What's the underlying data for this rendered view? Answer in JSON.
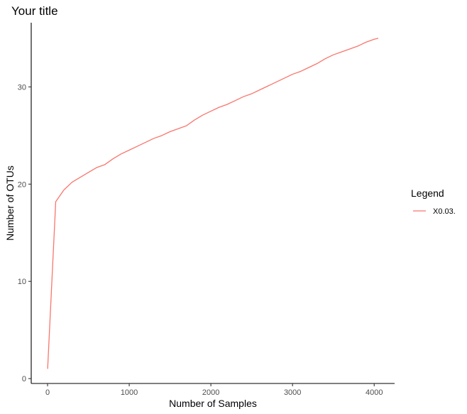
{
  "chart_data": {
    "type": "line",
    "title": "Your title",
    "xlabel": "Number of Samples",
    "ylabel": "Number of OTUs",
    "xlim": [
      -200,
      4250
    ],
    "ylim": [
      -0.5,
      36.6
    ],
    "x_ticks": [
      0,
      1000,
      2000,
      3000,
      4000
    ],
    "y_ticks": [
      0,
      10,
      20,
      30
    ],
    "grid": false,
    "legend": {
      "title": "Legend",
      "position": "right"
    },
    "series": [
      {
        "name": "X0.03.",
        "color": "#F8766D",
        "x": [
          1,
          100,
          200,
          300,
          400,
          500,
          600,
          700,
          800,
          900,
          1000,
          1100,
          1200,
          1300,
          1400,
          1500,
          1600,
          1700,
          1800,
          1900,
          2000,
          2100,
          2200,
          2300,
          2400,
          2500,
          2600,
          2700,
          2800,
          2900,
          3000,
          3100,
          3200,
          3300,
          3400,
          3500,
          3600,
          3700,
          3800,
          3900,
          4000,
          4050
        ],
        "y": [
          1.0,
          18.2,
          19.4,
          20.2,
          20.7,
          21.2,
          21.7,
          22.0,
          22.6,
          23.1,
          23.5,
          23.9,
          24.3,
          24.7,
          25.0,
          25.4,
          25.7,
          26.0,
          26.6,
          27.1,
          27.5,
          27.9,
          28.2,
          28.6,
          29.0,
          29.3,
          29.7,
          30.1,
          30.5,
          30.9,
          31.3,
          31.6,
          32.0,
          32.4,
          32.9,
          33.3,
          33.6,
          33.9,
          34.2,
          34.6,
          34.9,
          35.0
        ]
      }
    ]
  }
}
